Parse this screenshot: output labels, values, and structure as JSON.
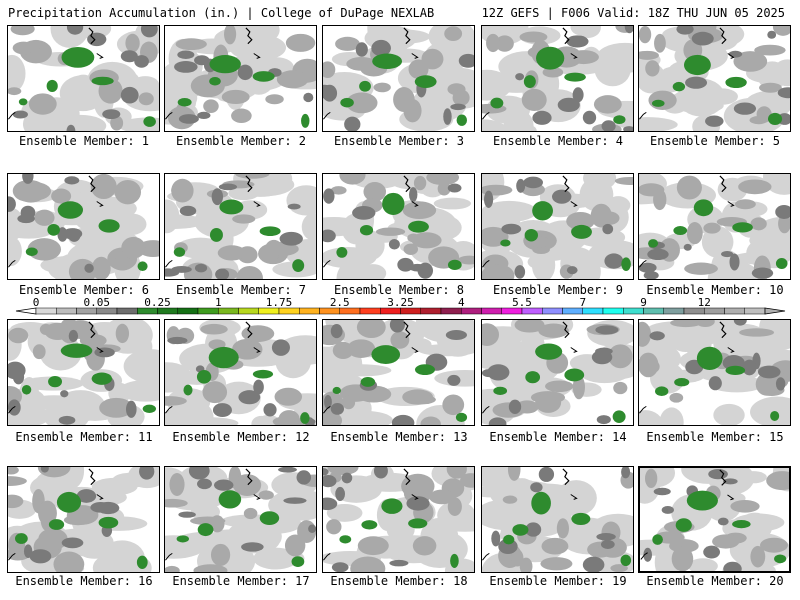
{
  "header": {
    "title_left": "Precipitation Accumulation (in.) | College of DuPage NEXLAB",
    "title_right": "12Z GEFS | F006 Valid: 18Z THU JUN 05 2025"
  },
  "panels": [
    {
      "label": "Ensemble Member: 1"
    },
    {
      "label": "Ensemble Member: 2"
    },
    {
      "label": "Ensemble Member: 3"
    },
    {
      "label": "Ensemble Member: 4"
    },
    {
      "label": "Ensemble Member: 5"
    },
    {
      "label": "Ensemble Member: 6"
    },
    {
      "label": "Ensemble Member: 7"
    },
    {
      "label": "Ensemble Member: 8"
    },
    {
      "label": "Ensemble Member: 9"
    },
    {
      "label": "Ensemble Member: 10"
    },
    {
      "label": "Ensemble Member: 11"
    },
    {
      "label": "Ensemble Member: 12"
    },
    {
      "label": "Ensemble Member: 13"
    },
    {
      "label": "Ensemble Member: 14"
    },
    {
      "label": "Ensemble Member: 15"
    },
    {
      "label": "Ensemble Member: 16"
    },
    {
      "label": "Ensemble Member: 17"
    },
    {
      "label": "Ensemble Member: 18"
    },
    {
      "label": "Ensemble Member: 19"
    },
    {
      "label": "Ensemble Member: 20"
    }
  ],
  "colorbar": {
    "labels": [
      "0",
      "0.05",
      "0.25",
      "1",
      "1.75",
      "2.5",
      "3.25",
      "4",
      "5.5",
      "7",
      "9",
      "12"
    ],
    "colors": [
      "#d9d9d9",
      "#bdbdbd",
      "#a3a3a3",
      "#8a8a8a",
      "#6e6e6e",
      "#2e8b2e",
      "#1f7a1f",
      "#157015",
      "#3f9c1f",
      "#7ab81f",
      "#b8d81f",
      "#f0f01f",
      "#ffd21f",
      "#ffb21f",
      "#ff921f",
      "#ff6f1f",
      "#ff3f1f",
      "#ef1f1f",
      "#cf1f1f",
      "#af1f2f",
      "#8f1f4f",
      "#af1f7f",
      "#cf1faf",
      "#ef1fdf",
      "#bf5fff",
      "#8f8fff",
      "#5fafff",
      "#2fdfff",
      "#1fffef",
      "#3fdfcf",
      "#5fbfaf",
      "#7f9f9f",
      "#8f8f8f",
      "#9f9f9f",
      "#afafaf",
      "#bfbfbf"
    ],
    "selected_panel": "Ensemble Member: 20"
  }
}
